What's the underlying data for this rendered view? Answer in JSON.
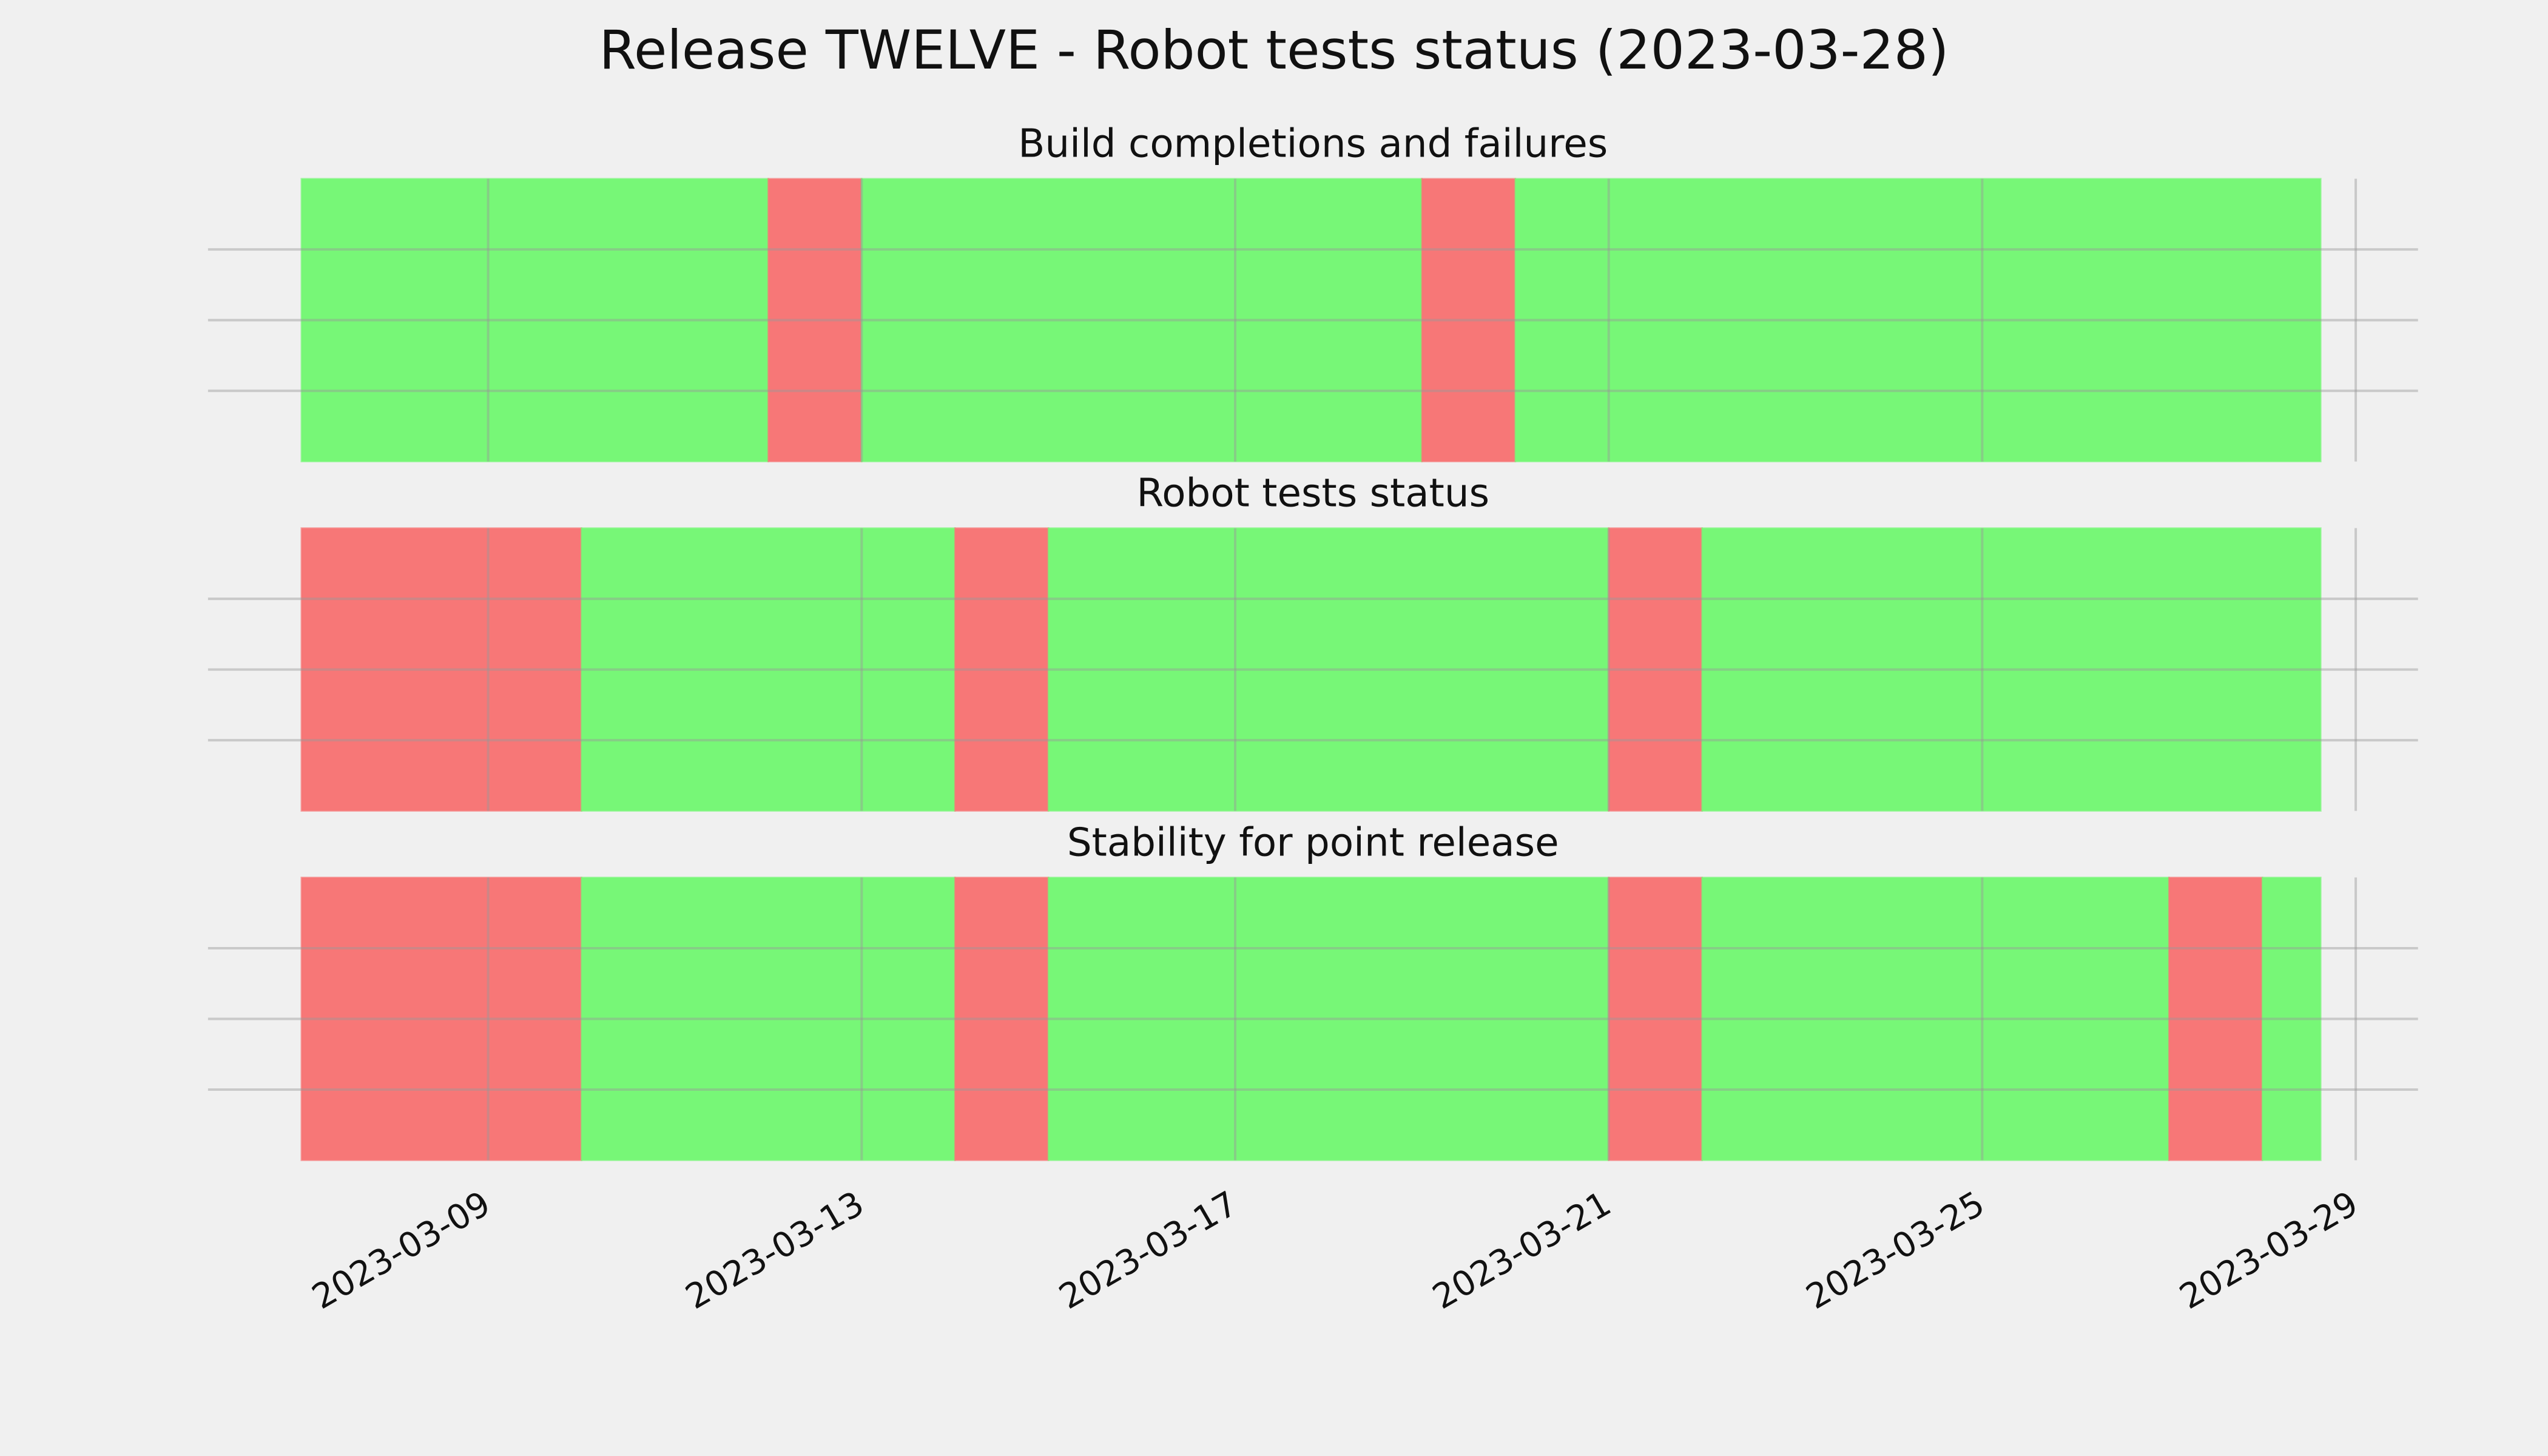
{
  "title": "Release TWELVE - Robot tests status (2023-03-28)",
  "chart_data": [
    {
      "type": "spans",
      "title": "Build completions and failures",
      "spans": [
        {
          "start": "2023-03-07",
          "end": "2023-03-12",
          "color": "#77f777"
        },
        {
          "start": "2023-03-12",
          "end": "2023-03-13",
          "color": "#f77777"
        },
        {
          "start": "2023-03-13",
          "end": "2023-03-19",
          "color": "#77f777"
        },
        {
          "start": "2023-03-19",
          "end": "2023-03-20",
          "color": "#f77777"
        },
        {
          "start": "2023-03-20",
          "end": "2023-03-28T15:00",
          "color": "#77f777"
        }
      ],
      "xlim": [
        "2023-03-06",
        "2023-03-29T16:00"
      ],
      "xticks": [
        "2023-03-09",
        "2023-03-13",
        "2023-03-17",
        "2023-03-21",
        "2023-03-25",
        "2023-03-29"
      ],
      "ylim": [
        0,
        1
      ],
      "yticks": [
        0.25,
        0.5,
        0.75
      ],
      "grid": true
    },
    {
      "type": "spans",
      "title": "Robot tests status",
      "spans": [
        {
          "start": "2023-03-07",
          "end": "2023-03-10",
          "color": "#f77777"
        },
        {
          "start": "2023-03-10",
          "end": "2023-03-14",
          "color": "#77f777"
        },
        {
          "start": "2023-03-14",
          "end": "2023-03-15",
          "color": "#f77777"
        },
        {
          "start": "2023-03-15",
          "end": "2023-03-21",
          "color": "#77f777"
        },
        {
          "start": "2023-03-21",
          "end": "2023-03-22",
          "color": "#f77777"
        },
        {
          "start": "2023-03-22",
          "end": "2023-03-28T15:00",
          "color": "#77f777"
        }
      ],
      "xlim": [
        "2023-03-06",
        "2023-03-29T16:00"
      ],
      "xticks": [
        "2023-03-09",
        "2023-03-13",
        "2023-03-17",
        "2023-03-21",
        "2023-03-25",
        "2023-03-29"
      ],
      "ylim": [
        0,
        1
      ],
      "yticks": [
        0.25,
        0.5,
        0.75
      ],
      "grid": true
    },
    {
      "type": "spans",
      "title": "Stability for point release",
      "spans": [
        {
          "start": "2023-03-07",
          "end": "2023-03-10",
          "color": "#f77777"
        },
        {
          "start": "2023-03-10",
          "end": "2023-03-14",
          "color": "#77f777"
        },
        {
          "start": "2023-03-14",
          "end": "2023-03-15",
          "color": "#f77777"
        },
        {
          "start": "2023-03-15",
          "end": "2023-03-21",
          "color": "#77f777"
        },
        {
          "start": "2023-03-21",
          "end": "2023-03-22",
          "color": "#f77777"
        },
        {
          "start": "2023-03-22",
          "end": "2023-03-27",
          "color": "#77f777"
        },
        {
          "start": "2023-03-27",
          "end": "2023-03-28",
          "color": "#f77777"
        },
        {
          "start": "2023-03-28",
          "end": "2023-03-28T15:00",
          "color": "#77f777"
        }
      ],
      "xlim": [
        "2023-03-06",
        "2023-03-29T16:00"
      ],
      "xticks": [
        "2023-03-09",
        "2023-03-13",
        "2023-03-17",
        "2023-03-21",
        "2023-03-25",
        "2023-03-29"
      ],
      "ylim": [
        0,
        1
      ],
      "yticks": [
        0.25,
        0.5,
        0.75
      ],
      "grid": true,
      "tick_labels": true
    }
  ]
}
